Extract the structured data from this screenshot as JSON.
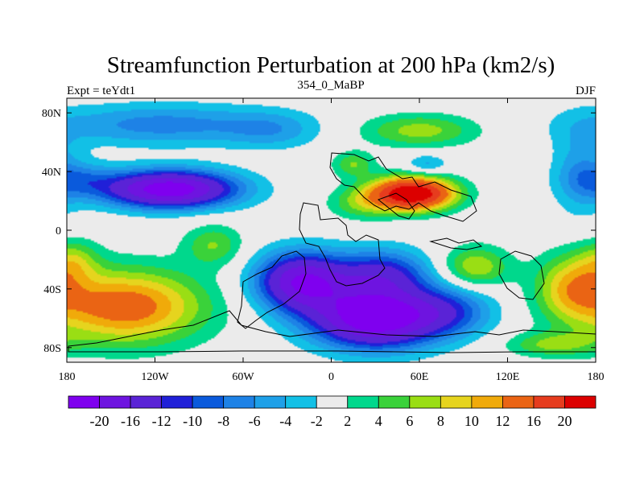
{
  "chart_data": {
    "type": "heatmap",
    "title": "Streamfunction Perturbation at 200 hPa (km2/s)",
    "subtitle_left": "Expt = teYdt1",
    "subtitle_center": "354_0_MaBP",
    "subtitle_right": "DJF",
    "xlim": [
      -180,
      180
    ],
    "ylim": [
      -90,
      90
    ],
    "x_ticks": [
      {
        "value": -180,
        "label": "180"
      },
      {
        "value": -120,
        "label": "120W"
      },
      {
        "value": -60,
        "label": "60W"
      },
      {
        "value": 0,
        "label": "0"
      },
      {
        "value": 60,
        "label": "60E"
      },
      {
        "value": 120,
        "label": "120E"
      },
      {
        "value": 180,
        "label": "180"
      }
    ],
    "y_ticks": [
      {
        "value": 80,
        "label": "80N"
      },
      {
        "value": 40,
        "label": "40N"
      },
      {
        "value": 0,
        "label": "0"
      },
      {
        "value": -40,
        "label": "40S"
      },
      {
        "value": -80,
        "label": "80S"
      }
    ],
    "colorbar": {
      "colors": [
        "#7f00ef",
        "#6e14e0",
        "#5a23d6",
        "#2020d8",
        "#0a5adc",
        "#1e82e6",
        "#1ea0e8",
        "#12c0e6",
        "#ebebeb",
        "#00d88c",
        "#3ad23a",
        "#9ade14",
        "#e6d41e",
        "#f0aa0a",
        "#ea6414",
        "#e63c1e",
        "#dc0000"
      ],
      "labels": [
        "-20",
        "-16",
        "-12",
        "-10",
        "-8",
        "-6",
        "-4",
        "-2",
        "2",
        "4",
        "6",
        "8",
        "10",
        "12",
        "16",
        "20"
      ]
    },
    "field": [
      {
        "lon": -115,
        "lat": 72,
        "slon": 55,
        "slat": 10,
        "amp": -7
      },
      {
        "lon": -40,
        "lat": 68,
        "slon": 22,
        "slat": 9,
        "amp": -4
      },
      {
        "lon": -110,
        "lat": 28,
        "slon": 32,
        "slat": 9,
        "amp": -23
      },
      {
        "lon": -172,
        "lat": 35,
        "slon": 18,
        "slat": 8,
        "amp": -5
      },
      {
        "lon": 55,
        "lat": 25,
        "slon": 20,
        "slat": 8,
        "amp": 25
      },
      {
        "lon": 20,
        "lat": 18,
        "slon": 16,
        "slat": 8,
        "amp": 5
      },
      {
        "lon": 15,
        "lat": 45,
        "slon": 10,
        "slat": 6,
        "amp": 6
      },
      {
        "lon": 60,
        "lat": 68,
        "slon": 28,
        "slat": 8,
        "amp": 7
      },
      {
        "lon": 65,
        "lat": 45,
        "slon": 10,
        "slat": 5,
        "amp": -5
      },
      {
        "lon": 170,
        "lat": 40,
        "slon": 14,
        "slat": 22,
        "amp": -5
      },
      {
        "lon": -20,
        "lat": -35,
        "slon": 22,
        "slat": 14,
        "amp": -20
      },
      {
        "lon": 35,
        "lat": -30,
        "slon": 22,
        "slat": 12,
        "amp": -12
      },
      {
        "lon": 30,
        "lat": -60,
        "slon": 30,
        "slat": 14,
        "amp": -24
      },
      {
        "lon": 80,
        "lat": -55,
        "slon": 22,
        "slat": 12,
        "amp": -8
      },
      {
        "lon": -140,
        "lat": -52,
        "slon": 38,
        "slat": 18,
        "amp": 14
      },
      {
        "lon": -80,
        "lat": -10,
        "slon": 14,
        "slat": 10,
        "amp": 6
      },
      {
        "lon": -175,
        "lat": -20,
        "slon": 12,
        "slat": 10,
        "amp": 5
      },
      {
        "lon": 98,
        "lat": -25,
        "slon": 16,
        "slat": 10,
        "amp": 8
      },
      {
        "lon": 165,
        "lat": -38,
        "slon": 18,
        "slat": 16,
        "amp": 9
      },
      {
        "lon": 150,
        "lat": -78,
        "slon": 22,
        "slat": 6,
        "amp": 6
      }
    ]
  }
}
